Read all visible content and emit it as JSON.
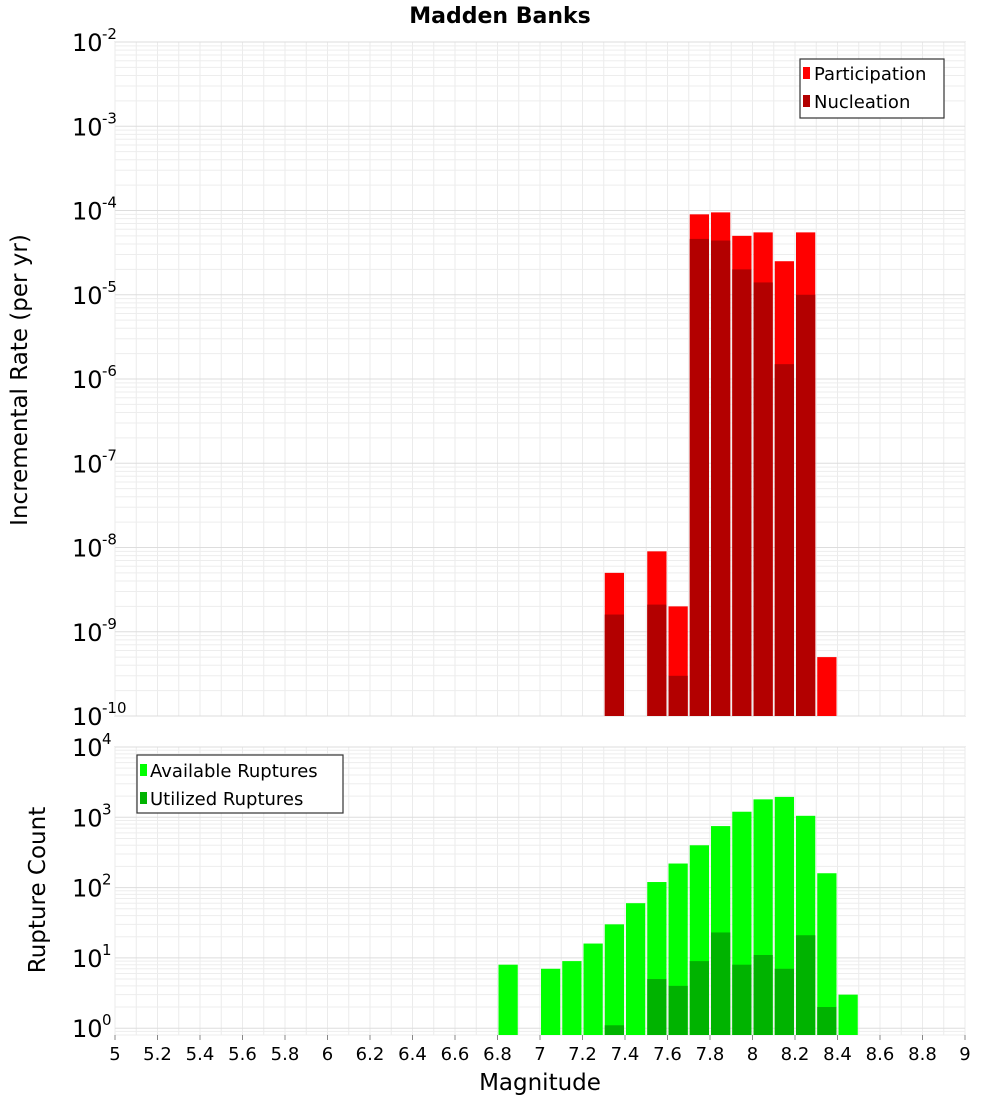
{
  "chart_data": [
    {
      "type": "bar",
      "title": "Madden Banks",
      "ylabel": "Incremental Rate (per yr)",
      "xlabel": "",
      "yscale": "log",
      "ylim": [
        1e-10,
        0.01
      ],
      "xlim": [
        5,
        9
      ],
      "ytick_exponents": [
        "-10",
        "-9",
        "-8",
        "-7",
        "-6",
        "-5",
        "-4",
        "-3",
        "-2"
      ],
      "legend": {
        "placement": "top-right",
        "entries": [
          "Participation",
          "Nucleation"
        ]
      },
      "colors": {
        "Participation": "#ff0000",
        "Nucleation": "#b30000"
      },
      "bin_width": 0.1,
      "series": [
        {
          "name": "Participation",
          "x": [
            7.35,
            7.55,
            7.65,
            7.75,
            7.85,
            7.95,
            8.05,
            8.15,
            8.25,
            8.35
          ],
          "values": [
            5e-09,
            9e-09,
            2e-09,
            9e-05,
            9.5e-05,
            5e-05,
            5.5e-05,
            2.5e-05,
            5.5e-05,
            5e-10
          ]
        },
        {
          "name": "Nucleation",
          "x": [
            7.35,
            7.55,
            7.65,
            7.75,
            7.85,
            7.95,
            8.05,
            8.15,
            8.25
          ],
          "values": [
            1.6e-09,
            2.1e-09,
            3e-10,
            4.6e-05,
            4.4e-05,
            2e-05,
            1.4e-05,
            1.5e-06,
            1e-05
          ]
        }
      ],
      "grid": true
    },
    {
      "type": "bar",
      "title": "",
      "ylabel": "Rupture Count",
      "xlabel": "Magnitude",
      "yscale": "log",
      "ylim": [
        0.8,
        10000
      ],
      "xlim": [
        5,
        9
      ],
      "ytick_exponents": [
        "0",
        "1",
        "2",
        "3",
        "4"
      ],
      "xticks": [
        "5",
        "5.2",
        "5.4",
        "5.6",
        "5.8",
        "6",
        "6.2",
        "6.4",
        "6.6",
        "6.8",
        "7",
        "7.2",
        "7.4",
        "7.6",
        "7.8",
        "8",
        "8.2",
        "8.4",
        "8.6",
        "8.8",
        "9"
      ],
      "legend": {
        "placement": "top-left",
        "entries": [
          "Available Ruptures",
          "Utilized Ruptures"
        ]
      },
      "colors": {
        "Available Ruptures": "#00ff00",
        "Utilized Ruptures": "#00b300"
      },
      "bin_width": 0.1,
      "series": [
        {
          "name": "Available Ruptures",
          "x": [
            6.85,
            7.05,
            7.15,
            7.25,
            7.35,
            7.45,
            7.55,
            7.65,
            7.75,
            7.85,
            7.95,
            8.05,
            8.15,
            8.25,
            8.35,
            8.45
          ],
          "values": [
            8,
            7,
            9,
            16,
            30,
            60,
            120,
            220,
            400,
            750,
            1200,
            1800,
            1950,
            1050,
            160,
            3
          ]
        },
        {
          "name": "Utilized Ruptures",
          "x": [
            7.35,
            7.55,
            7.65,
            7.75,
            7.85,
            7.95,
            8.05,
            8.15,
            8.25,
            8.35
          ],
          "values": [
            1.1,
            5,
            4,
            9,
            23,
            8,
            11,
            7,
            21,
            2
          ]
        }
      ],
      "grid": true
    }
  ]
}
